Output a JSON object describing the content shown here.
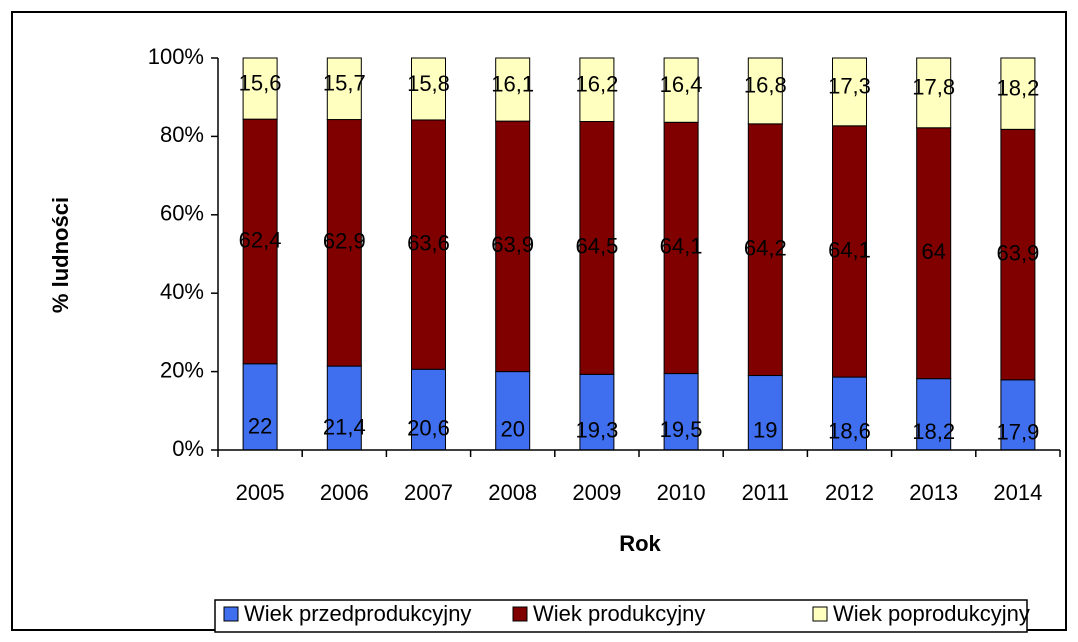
{
  "chart_data": {
    "type": "bar",
    "stacked": true,
    "x_label": "Rok",
    "y_label": "% ludności",
    "categories": [
      "2005",
      "2006",
      "2007",
      "2008",
      "2009",
      "2010",
      "2011",
      "2012",
      "2013",
      "2014"
    ],
    "series": [
      {
        "name": "Wiek przedprodukcyjny",
        "color": "#3f6fef",
        "values": [
          22,
          21.4,
          20.6,
          20,
          19.3,
          19.5,
          19,
          18.6,
          18.2,
          17.9
        ],
        "value_labels": [
          "22",
          "21,4",
          "20,6",
          "20",
          "19,3",
          "19,5",
          "19",
          "18,6",
          "18,2",
          "17,9"
        ]
      },
      {
        "name": "Wiek produkcyjny",
        "color": "#800000",
        "values": [
          62.4,
          62.9,
          63.6,
          63.9,
          64.5,
          64.1,
          64.2,
          64.1,
          64,
          63.9
        ],
        "value_labels": [
          "62,4",
          "62,9",
          "63,6",
          "63,9",
          "64,5",
          "64,1",
          "64,2",
          "64,1",
          "64",
          "63,9"
        ]
      },
      {
        "name": "Wiek poprodukcyjny",
        "color": "#ffffc0",
        "values": [
          15.6,
          15.7,
          15.8,
          16.1,
          16.2,
          16.4,
          16.8,
          17.3,
          17.8,
          18.2
        ],
        "value_labels": [
          "15,6",
          "15,7",
          "15,8",
          "16,1",
          "16,2",
          "16,4",
          "16,8",
          "17,3",
          "17,8",
          "18,2"
        ]
      }
    ],
    "ylim": [
      0,
      100
    ],
    "yticks": [
      {
        "value": 0,
        "label": "0%"
      },
      {
        "value": 20,
        "label": "20%"
      },
      {
        "value": 40,
        "label": "40%"
      },
      {
        "value": 60,
        "label": "60%"
      },
      {
        "value": 80,
        "label": "80%"
      },
      {
        "value": 100,
        "label": "100%"
      }
    ],
    "grid": false,
    "legend": "bottom"
  }
}
